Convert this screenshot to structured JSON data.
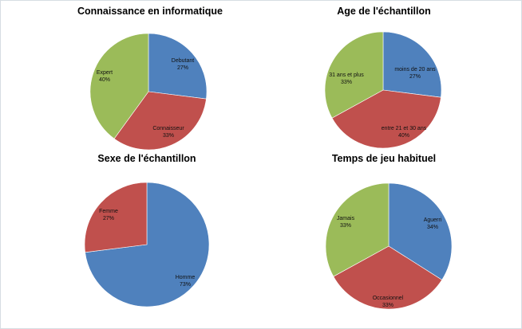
{
  "chart_data": [
    {
      "type": "pie",
      "title": "Connaissance en informatique",
      "slices": [
        {
          "label": "Debutant",
          "value": 27,
          "display": "27%",
          "color": "#4f81bd"
        },
        {
          "label": "Connaisseur",
          "value": 33,
          "display": "33%",
          "color": "#c0504d"
        },
        {
          "label": "Expert",
          "value": 40,
          "display": "40%",
          "color": "#9bbb59"
        }
      ]
    },
    {
      "type": "pie",
      "title": "Age de l'échantillon",
      "slices": [
        {
          "label": "moins de 20 ans",
          "value": 27,
          "display": "27%",
          "color": "#4f81bd"
        },
        {
          "label": "entre 21 et 30 ans",
          "value": 40,
          "display": "40%",
          "color": "#c0504d"
        },
        {
          "label": "31 ans et plus",
          "value": 33,
          "display": "33%",
          "color": "#9bbb59"
        }
      ]
    },
    {
      "type": "pie",
      "title": "Sexe de l'échantillon",
      "slices": [
        {
          "label": "Homme",
          "value": 73,
          "display": "73%",
          "color": "#4f81bd"
        },
        {
          "label": "Femme",
          "value": 27,
          "display": "27%",
          "color": "#c0504d"
        }
      ]
    },
    {
      "type": "pie",
      "title": "Temps de jeu habituel",
      "slices": [
        {
          "label": "Aguerri",
          "value": 34,
          "display": "34%",
          "color": "#4f81bd"
        },
        {
          "label": "Occasionnel",
          "value": 33,
          "display": "33%",
          "color": "#c0504d"
        },
        {
          "label": "Jamais",
          "value": 33,
          "display": "33%",
          "color": "#9bbb59"
        }
      ]
    }
  ]
}
